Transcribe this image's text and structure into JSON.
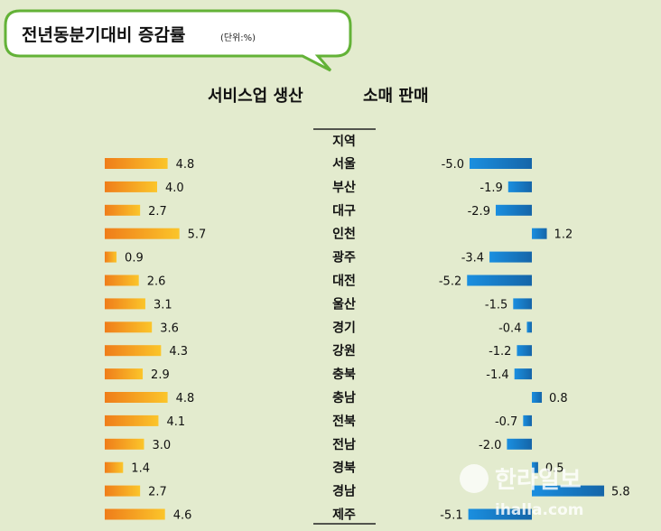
{
  "header": {
    "title": "전년동분기대비 증감률",
    "unit": "(단위:%)"
  },
  "chart_data": [
    {
      "type": "bar",
      "title": "서비스업 생산",
      "orientation": "horizontal",
      "categories": [
        "서울",
        "부산",
        "대구",
        "인천",
        "광주",
        "대전",
        "울산",
        "경기",
        "강원",
        "충북",
        "충남",
        "전북",
        "전남",
        "경북",
        "경남",
        "제주"
      ],
      "values": [
        4.8,
        4.0,
        2.7,
        5.7,
        0.9,
        2.6,
        3.1,
        3.6,
        4.3,
        2.9,
        4.8,
        4.1,
        3.0,
        1.4,
        2.7,
        4.6
      ],
      "color": "#f5a81c"
    },
    {
      "type": "bar",
      "title": "소매 판매",
      "orientation": "horizontal",
      "categories": [
        "서울",
        "부산",
        "대구",
        "인천",
        "광주",
        "대전",
        "울산",
        "경기",
        "강원",
        "충북",
        "충남",
        "전북",
        "전남",
        "경북",
        "경남",
        "제주"
      ],
      "values": [
        -5.0,
        -1.9,
        -2.9,
        1.2,
        -3.4,
        -5.2,
        -1.5,
        -0.4,
        -1.2,
        -1.4,
        0.8,
        -0.7,
        -2.0,
        0.5,
        5.8,
        -5.1
      ],
      "color": "#1f8fd6"
    }
  ],
  "labels": {
    "region_header": "지역",
    "values_left": [
      "4.8",
      "4.0",
      "2.7",
      "5.7",
      "0.9",
      "2.6",
      "3.1",
      "3.6",
      "4.3",
      "2.9",
      "4.8",
      "4.1",
      "3.0",
      "1.4",
      "2.7",
      "4.6"
    ],
    "values_right": [
      "-5.0",
      "-1.9",
      "-2.9",
      "1.2",
      "-3.4",
      "-5.2",
      "-1.5",
      "-0.4",
      "-1.2",
      "-1.4",
      "0.8",
      "-0.7",
      "-2.0",
      "0.5",
      "5.8",
      "-5.1"
    ]
  },
  "watermark": {
    "name": "한라일보",
    "url": "ihalla.com"
  },
  "colors": {
    "background": "#e3ebce",
    "bubble_border": "#63b237",
    "service_bar": "#f5a81c",
    "retail_bar": "#1f8fd6"
  }
}
